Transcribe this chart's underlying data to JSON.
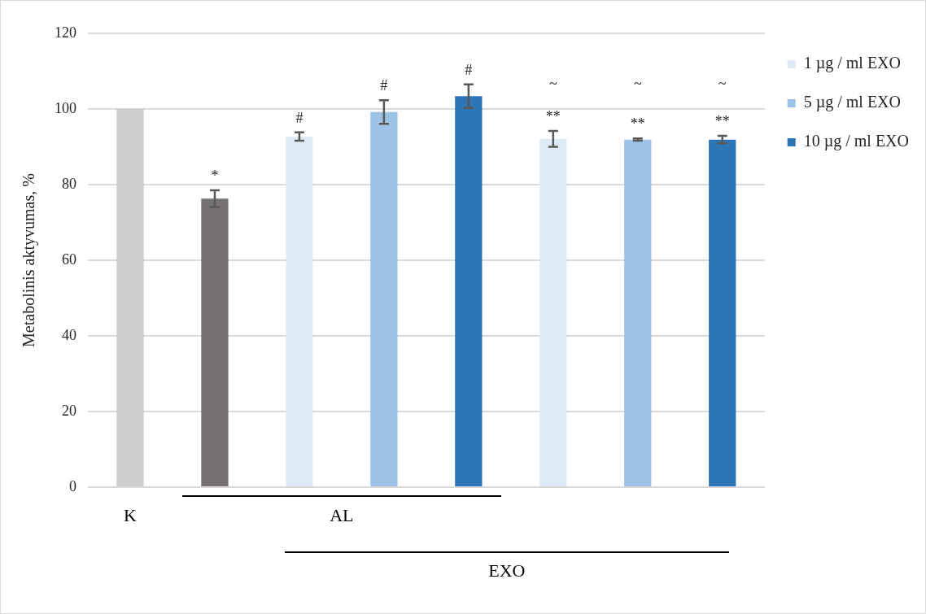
{
  "chart_data": {
    "type": "bar",
    "ylabel": "Metabolinis aktyvumas, %",
    "categories": [
      null,
      null,
      null,
      null,
      null,
      null,
      null,
      null
    ],
    "series": [
      {
        "color": "#cfcdce",
        "values": [
          100,
          null,
          null,
          null,
          null,
          null,
          null,
          null
        ]
      },
      {
        "color": "#767171",
        "values": [
          null,
          76.3,
          null,
          null,
          null,
          null,
          null,
          null
        ],
        "errors": [
          null,
          2.2,
          null,
          null,
          null,
          null,
          null,
          null
        ],
        "value_labels": [
          null,
          "*",
          null,
          null,
          null,
          null,
          null,
          null
        ]
      },
      {
        "name": "1 µg / ml EXO",
        "color": "#deebf7",
        "values": [
          null,
          null,
          92.7,
          null,
          null,
          92.1,
          null,
          null
        ],
        "errors": [
          null,
          null,
          1.1,
          null,
          null,
          2.1,
          null,
          null
        ],
        "value_labels": [
          null,
          null,
          "#",
          null,
          null,
          "**",
          null,
          null
        ]
      },
      {
        "name": "5 µg / ml EXO",
        "color": "#9dc3e6",
        "values": [
          null,
          null,
          null,
          99.2,
          null,
          null,
          91.9,
          null
        ],
        "errors": [
          null,
          null,
          null,
          3.1,
          null,
          null,
          0.3,
          null
        ],
        "value_labels": [
          null,
          null,
          null,
          "#",
          null,
          null,
          "**",
          null
        ]
      },
      {
        "name": "10 µg / ml EXO",
        "color": "#2e75b6",
        "values": [
          null,
          null,
          null,
          null,
          103.4,
          null,
          null,
          91.9
        ],
        "errors": [
          null,
          null,
          null,
          null,
          3.1,
          null,
          null,
          1.0
        ],
        "value_labels": [
          null,
          null,
          null,
          null,
          "#",
          null,
          null,
          "**"
        ]
      }
    ],
    "ylim": [
      0,
      120
    ],
    "yticks": [
      0,
      20,
      40,
      60,
      80,
      100,
      120
    ],
    "grid": "y",
    "legend": "top right",
    "annotations": [
      "K",
      "AL",
      "EXO",
      "~",
      "~",
      "~"
    ]
  }
}
